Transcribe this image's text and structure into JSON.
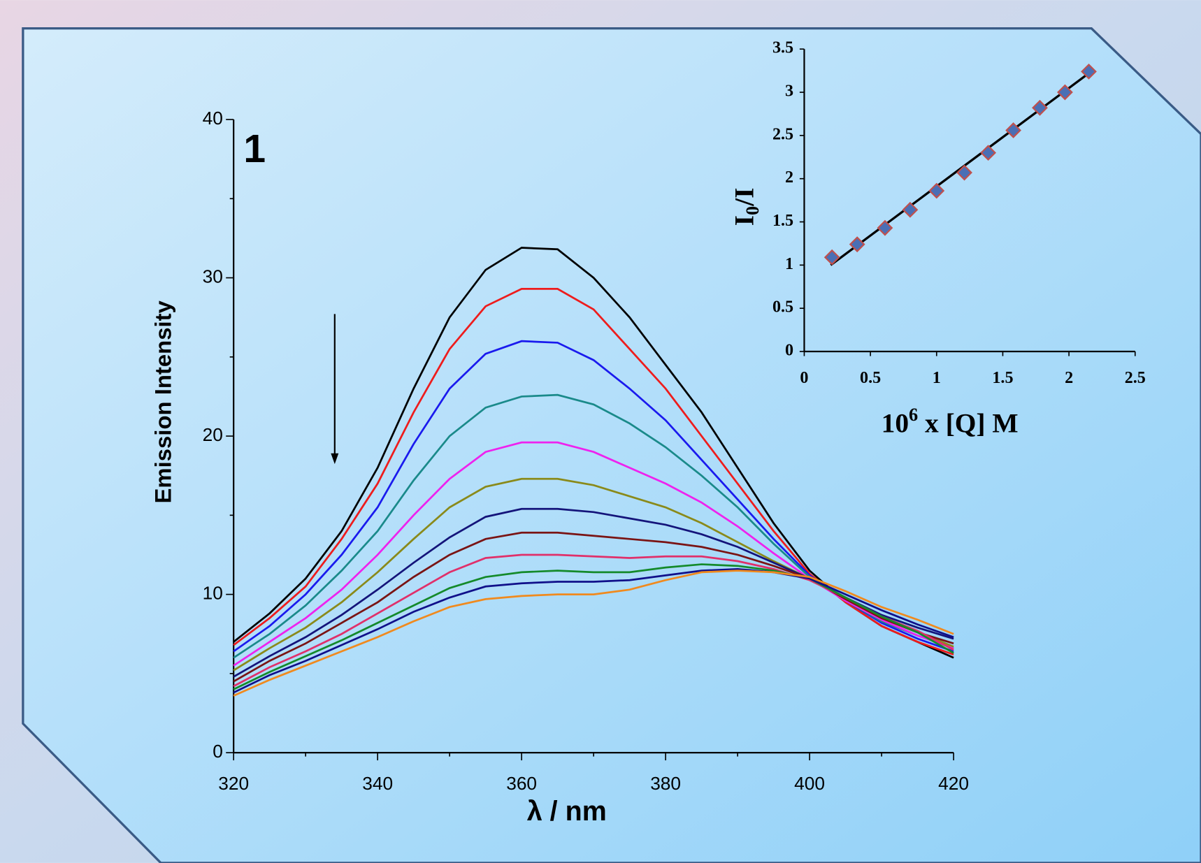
{
  "chart_data": [
    {
      "type": "line",
      "annotation": "1",
      "xlabel": "λ / nm",
      "ylabel": "Emission Intensity",
      "x": [
        320,
        325,
        330,
        335,
        340,
        345,
        350,
        355,
        360,
        365,
        370,
        375,
        380,
        385,
        390,
        395,
        400,
        405,
        410,
        415,
        420
      ],
      "xlim": [
        320,
        420
      ],
      "xticks": [
        320,
        340,
        360,
        380,
        400,
        420
      ],
      "xminorticks": [
        330,
        350,
        370,
        390,
        410
      ],
      "ylim": [
        0,
        40
      ],
      "yticks": [
        0,
        10,
        20,
        30,
        40
      ],
      "yminorticks": [
        5,
        15,
        25,
        35
      ],
      "series": [
        {
          "color": "#000000",
          "values": [
            7.0,
            8.8,
            11,
            14,
            18,
            23,
            27.5,
            30.5,
            31.9,
            31.8,
            30.0,
            27.5,
            24.5,
            21.5,
            18,
            14.5,
            11.5,
            9.5,
            8,
            7,
            6
          ]
        },
        {
          "color": "#ee1c1c",
          "values": [
            6.8,
            8.5,
            10.5,
            13.5,
            17,
            21.5,
            25.5,
            28.2,
            29.3,
            29.3,
            28,
            25.5,
            23,
            20,
            17,
            14,
            11.3,
            9.5,
            8,
            7,
            6.2
          ]
        },
        {
          "color": "#1a1aee",
          "values": [
            6.4,
            8,
            10,
            12.5,
            15.5,
            19.5,
            23,
            25.2,
            26,
            25.9,
            24.8,
            23,
            21,
            18.5,
            16,
            13.5,
            11.2,
            9.6,
            8.2,
            7.2,
            6.4
          ]
        },
        {
          "color": "#1a8a8a",
          "values": [
            6,
            7.5,
            9.3,
            11.5,
            14,
            17.2,
            20,
            21.8,
            22.5,
            22.6,
            22,
            20.8,
            19.3,
            17.5,
            15.5,
            13.2,
            11.1,
            9.6,
            8.3,
            7.4,
            6.6
          ]
        },
        {
          "color": "#ee22ee",
          "values": [
            5.5,
            7,
            8.5,
            10.3,
            12.5,
            15,
            17.3,
            19,
            19.6,
            19.6,
            19,
            18,
            17,
            15.8,
            14.3,
            12.6,
            11,
            9.6,
            8.4,
            7.4,
            6.6
          ]
        },
        {
          "color": "#8a8a1a",
          "values": [
            5.2,
            6.6,
            7.9,
            9.5,
            11.4,
            13.5,
            15.5,
            16.8,
            17.3,
            17.3,
            16.9,
            16.2,
            15.5,
            14.5,
            13.3,
            12.1,
            11,
            9.7,
            8.5,
            7.6,
            6.7
          ]
        },
        {
          "color": "#14147a",
          "values": [
            4.8,
            6.1,
            7.3,
            8.7,
            10.3,
            12,
            13.6,
            14.9,
            15.4,
            15.4,
            15.2,
            14.8,
            14.4,
            13.8,
            13,
            12,
            11,
            9.8,
            8.7,
            7.9,
            7.2
          ]
        },
        {
          "color": "#7a1414",
          "values": [
            4.5,
            5.8,
            6.9,
            8.2,
            9.5,
            11.1,
            12.5,
            13.5,
            13.9,
            13.9,
            13.7,
            13.5,
            13.3,
            13,
            12.5,
            11.8,
            11,
            9.7,
            8.5,
            7.6,
            6.9
          ]
        },
        {
          "color": "#e0306a",
          "values": [
            4.2,
            5.4,
            6.4,
            7.5,
            8.8,
            10.1,
            11.4,
            12.3,
            12.5,
            12.5,
            12.4,
            12.3,
            12.4,
            12.4,
            12.1,
            11.6,
            10.9,
            9.8,
            8.6,
            7.7,
            6.5
          ]
        },
        {
          "color": "#148a2a",
          "values": [
            4,
            5.1,
            6.1,
            7.1,
            8.2,
            9.3,
            10.4,
            11.1,
            11.4,
            11.5,
            11.4,
            11.4,
            11.7,
            11.9,
            11.8,
            11.5,
            11,
            9.8,
            8.6,
            7.6,
            6.3
          ]
        },
        {
          "color": "#10108a",
          "values": [
            3.8,
            4.9,
            5.8,
            6.8,
            7.8,
            8.9,
            9.8,
            10.5,
            10.7,
            10.8,
            10.8,
            10.9,
            11.2,
            11.5,
            11.6,
            11.4,
            11,
            10,
            9,
            8.1,
            7.3
          ]
        },
        {
          "color": "#f08a1e",
          "values": [
            3.6,
            4.6,
            5.5,
            6.4,
            7.3,
            8.3,
            9.2,
            9.7,
            9.9,
            10,
            10,
            10.3,
            10.9,
            11.4,
            11.5,
            11.4,
            11.1,
            10.2,
            9.2,
            8.4,
            7.5
          ]
        }
      ]
    },
    {
      "type": "scatter",
      "xlabel": [
        "10",
        "6",
        " x [Q] M"
      ],
      "ylabel": [
        "I",
        "0",
        "/I"
      ],
      "x": [
        0.21,
        0.4,
        0.61,
        0.8,
        1.0,
        1.21,
        1.39,
        1.58,
        1.78,
        1.97,
        2.15
      ],
      "values": [
        1.09,
        1.24,
        1.43,
        1.64,
        1.86,
        2.07,
        2.3,
        2.56,
        2.82,
        3.0,
        3.24
      ],
      "color": "#4a6fb5",
      "edge_color": "#c0504d",
      "fit": {
        "x": [
          0.2,
          2.15
        ],
        "y": [
          1.0,
          3.22
        ],
        "color": "#000000"
      },
      "xlim": [
        0,
        2.5
      ],
      "xticks": [
        0,
        0.5,
        1,
        1.5,
        2,
        2.5
      ],
      "ylim": [
        0,
        3.5
      ],
      "yticks": [
        0,
        0.5,
        1,
        1.5,
        2,
        2.5,
        3,
        3.5
      ]
    }
  ]
}
